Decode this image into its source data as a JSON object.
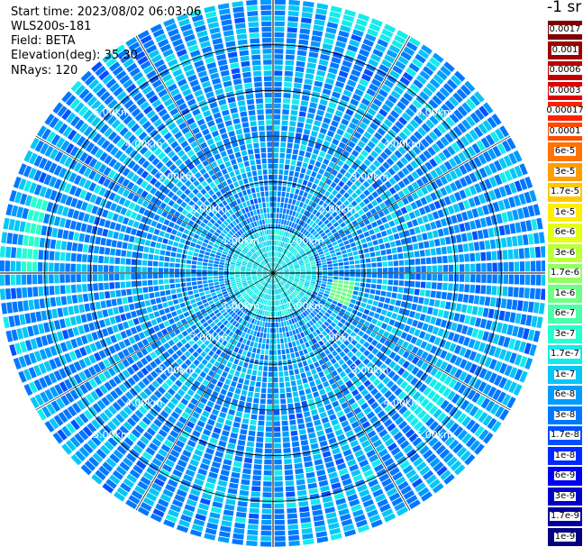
{
  "header": {
    "start_time": "Start time: 2023/08/02 06:03:06",
    "instrument": "WLS200s-181",
    "field": "Field: BETA",
    "elevation": "Elevation(deg): 35.30",
    "nrays": "NRays: 120"
  },
  "colorbar": {
    "title": "-1 sr",
    "levels": [
      {
        "label": "0.0017",
        "color": "#7f0000"
      },
      {
        "label": "0.001",
        "color": "#a00000"
      },
      {
        "label": "0.0006",
        "color": "#c00000"
      },
      {
        "label": "0.0003",
        "color": "#e00000"
      },
      {
        "label": "0.00017",
        "color": "#ff2000"
      },
      {
        "label": "0.0001",
        "color": "#ff4a00"
      },
      {
        "label": "6e-5",
        "color": "#ff7400"
      },
      {
        "label": "3e-5",
        "color": "#ff9e00"
      },
      {
        "label": "1.7e-5",
        "color": "#ffc800"
      },
      {
        "label": "1e-5",
        "color": "#ffee00"
      },
      {
        "label": "6e-6",
        "color": "#e4ff14"
      },
      {
        "label": "3e-6",
        "color": "#bcff3b"
      },
      {
        "label": "1.7e-6",
        "color": "#94ff62"
      },
      {
        "label": "1e-6",
        "color": "#70ff86"
      },
      {
        "label": "6e-7",
        "color": "#4bffab"
      },
      {
        "label": "3e-7",
        "color": "#28ffce"
      },
      {
        "label": "1.7e-7",
        "color": "#14ecec"
      },
      {
        "label": "1e-7",
        "color": "#08c6f6"
      },
      {
        "label": "6e-8",
        "color": "#009cff"
      },
      {
        "label": "3e-8",
        "color": "#0078ff"
      },
      {
        "label": "1.7e-8",
        "color": "#0050ff"
      },
      {
        "label": "1e-8",
        "color": "#0028ff"
      },
      {
        "label": "6e-9",
        "color": "#0000f0"
      },
      {
        "label": "3e-9",
        "color": "#0000c8"
      },
      {
        "label": "1.7e-9",
        "color": "#0000a0"
      },
      {
        "label": "1e-9",
        "color": "#000080"
      }
    ]
  },
  "chart_data": {
    "type": "heatmap",
    "projection": "polar PPI",
    "title": "",
    "field": "BETA",
    "elevation_deg": 35.3,
    "n_rays": 120,
    "range_rings_km": [
      1,
      2,
      3,
      4,
      5
    ],
    "ring_labels": [
      "1.00km",
      "2.00km",
      "3.00km",
      "4.00km",
      "5.00km"
    ],
    "max_range_km": 6.0,
    "azimuth_spokes_deg": [
      0,
      30,
      60,
      90,
      120,
      150,
      180,
      210,
      240,
      270,
      300,
      330
    ],
    "dominant_level": "3e-8 to 1e-7",
    "near_range_level": "1.7e-7 to 3e-7",
    "features": [
      {
        "azimuth_deg": 105,
        "range_km": [
          1.3,
          1.7
        ],
        "level": "1e-6"
      },
      {
        "azimuth_deg": 280,
        "range_km": [
          5.1,
          5.4
        ],
        "level": "3e-7"
      },
      {
        "azimuth_deg": 20,
        "range_km": [
          5.6,
          5.9
        ],
        "level": "1.7e-7"
      },
      {
        "azimuth_deg": 130,
        "range_km": [
          4.2,
          4.6
        ],
        "level": "1.7e-7"
      }
    ]
  }
}
